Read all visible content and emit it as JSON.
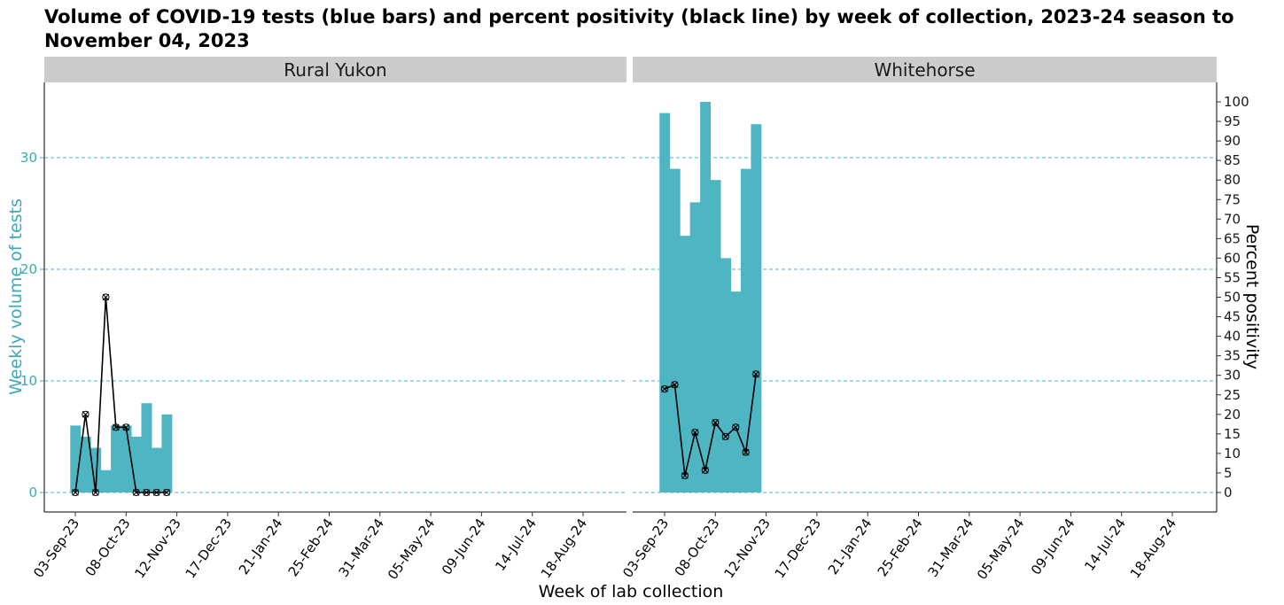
{
  "title": "Volume of COVID-19 tests (blue bars) and percent positivity (black line) by week of collection, 2023-24 season to November 04, 2023",
  "colors": {
    "bars": "#4db6c2",
    "line": "#000000",
    "grid": "#4db6c2",
    "strip": "#cccccc",
    "left_axis_text": "#3fa8b8"
  },
  "chart_data": {
    "type": "bar",
    "title": "Volume of COVID-19 tests (blue bars) and percent positivity (black line) by week of collection, 2023-24 season to November 04, 2023",
    "xlabel": "Week of lab collection",
    "ylabel": "Weekly volume of tests",
    "y2label": "Percent positivity",
    "ylim": [
      0,
      36
    ],
    "y2lim": [
      0,
      100
    ],
    "y_ticks": [
      0,
      10,
      20,
      30
    ],
    "y2_ticks": [
      0,
      5,
      10,
      15,
      20,
      25,
      30,
      35,
      40,
      45,
      50,
      55,
      60,
      65,
      70,
      75,
      80,
      85,
      90,
      95,
      100
    ],
    "x_ticks": [
      "03-Sep-23",
      "08-Oct-23",
      "12-Nov-23",
      "17-Dec-23",
      "21-Jan-24",
      "25-Feb-24",
      "31-Mar-24",
      "05-May-24",
      "09-Jun-24",
      "14-Jul-24",
      "18-Aug-24"
    ],
    "grid": "dashed horizontal at left-axis ticks",
    "panels": [
      {
        "name": "Rural Yukon",
        "weeks": [
          "03-Sep-23",
          "10-Sep-23",
          "17-Sep-23",
          "24-Sep-23",
          "01-Oct-23",
          "08-Oct-23",
          "15-Oct-23",
          "22-Oct-23",
          "29-Oct-23",
          "05-Nov-23"
        ],
        "tests": [
          6,
          5,
          4,
          2,
          6,
          6,
          5,
          8,
          4,
          7
        ],
        "percent_positive": [
          0,
          20,
          0,
          50,
          16.7,
          16.7,
          0,
          0,
          0,
          0
        ]
      },
      {
        "name": "Whitehorse",
        "weeks": [
          "03-Sep-23",
          "10-Sep-23",
          "17-Sep-23",
          "24-Sep-23",
          "01-Oct-23",
          "08-Oct-23",
          "15-Oct-23",
          "22-Oct-23",
          "29-Oct-23",
          "05-Nov-23"
        ],
        "tests": [
          34,
          29,
          23,
          26,
          35,
          28,
          21,
          18,
          29,
          33
        ],
        "percent_positive": [
          26.5,
          27.6,
          4.3,
          15.4,
          5.7,
          17.9,
          14.3,
          16.7,
          10.3,
          30.3
        ]
      }
    ]
  }
}
